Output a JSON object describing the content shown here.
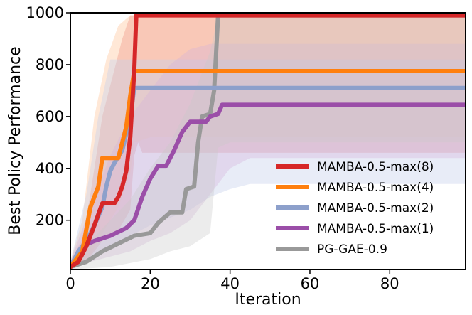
{
  "chart_data": {
    "type": "line",
    "title": "",
    "xlabel": "Iteration",
    "ylabel": "Best Policy Performance",
    "xlim": [
      0,
      99
    ],
    "ylim": [
      10,
      1000
    ],
    "xticks": [
      0,
      20,
      40,
      60,
      80
    ],
    "yticks": [
      200,
      400,
      600,
      800,
      1000
    ],
    "xtick_labels": [
      "0",
      "20",
      "40",
      "60",
      "80"
    ],
    "ytick_labels": [
      "200",
      "400",
      "600",
      "800",
      "1000"
    ],
    "legend_position": "lower-right",
    "series": [
      {
        "name": "MAMBA-0.5-max(8)",
        "color": "#d62728",
        "band_color": "#e88a8a",
        "band_opacity": 0.45,
        "points": [
          [
            0,
            20
          ],
          [
            2,
            40
          ],
          [
            4,
            100
          ],
          [
            6,
            180
          ],
          [
            8,
            265
          ],
          [
            11,
            265
          ],
          [
            12,
            290
          ],
          [
            13,
            330
          ],
          [
            14,
            390
          ],
          [
            15,
            520
          ],
          [
            16,
            780
          ],
          [
            16.5,
            990
          ],
          [
            99,
            990
          ]
        ],
        "band_upper": [
          [
            0,
            40
          ],
          [
            3,
            130
          ],
          [
            5,
            300
          ],
          [
            8,
            600
          ],
          [
            11,
            780
          ],
          [
            13,
            900
          ],
          [
            15,
            990
          ],
          [
            99,
            990
          ]
        ],
        "band_lower": [
          [
            0,
            10
          ],
          [
            4,
            40
          ],
          [
            8,
            120
          ],
          [
            12,
            160
          ],
          [
            15,
            240
          ],
          [
            16,
            450
          ],
          [
            17,
            500
          ],
          [
            18,
            460
          ],
          [
            99,
            460
          ]
        ]
      },
      {
        "name": "MAMBA-0.5-max(4)",
        "color": "#ff7f0e",
        "band_color": "#ffc59a",
        "band_opacity": 0.4,
        "points": [
          [
            0,
            20
          ],
          [
            3,
            80
          ],
          [
            5,
            250
          ],
          [
            7,
            330
          ],
          [
            8,
            440
          ],
          [
            11,
            440
          ],
          [
            12,
            440
          ],
          [
            13,
            500
          ],
          [
            14,
            560
          ],
          [
            15,
            680
          ],
          [
            16,
            775
          ],
          [
            99,
            775
          ]
        ],
        "band_upper": [
          [
            0,
            40
          ],
          [
            3,
            200
          ],
          [
            6,
            600
          ],
          [
            9,
            820
          ],
          [
            12,
            950
          ],
          [
            15,
            990
          ],
          [
            20,
            990
          ],
          [
            99,
            990
          ]
        ],
        "band_lower": [
          [
            0,
            10
          ],
          [
            4,
            40
          ],
          [
            8,
            150
          ],
          [
            12,
            250
          ],
          [
            15,
            380
          ],
          [
            16,
            500
          ],
          [
            20,
            520
          ],
          [
            99,
            520
          ]
        ]
      },
      {
        "name": "MAMBA-0.5-max(2)",
        "color": "#8da0cb",
        "band_color": "#c5d0ec",
        "band_opacity": 0.4,
        "points": [
          [
            0,
            20
          ],
          [
            2,
            80
          ],
          [
            4,
            120
          ],
          [
            6,
            180
          ],
          [
            8,
            250
          ],
          [
            9,
            330
          ],
          [
            10,
            390
          ],
          [
            11,
            420
          ],
          [
            13,
            470
          ],
          [
            15,
            600
          ],
          [
            16,
            710
          ],
          [
            99,
            710
          ]
        ],
        "band_upper": [
          [
            0,
            40
          ],
          [
            4,
            300
          ],
          [
            7,
            600
          ],
          [
            10,
            820
          ],
          [
            13,
            820
          ],
          [
            15,
            820
          ],
          [
            18,
            820
          ],
          [
            99,
            820
          ]
        ],
        "band_lower": [
          [
            0,
            10
          ],
          [
            5,
            50
          ],
          [
            10,
            100
          ],
          [
            15,
            140
          ],
          [
            20,
            180
          ],
          [
            30,
            240
          ],
          [
            35,
            290
          ],
          [
            40,
            320
          ],
          [
            45,
            340
          ],
          [
            99,
            340
          ]
        ]
      },
      {
        "name": "MAMBA-0.5-max(1)",
        "color": "#9b4ea8",
        "band_color": "#d4b3da",
        "band_opacity": 0.35,
        "points": [
          [
            0,
            20
          ],
          [
            3,
            100
          ],
          [
            6,
            120
          ],
          [
            10,
            140
          ],
          [
            14,
            170
          ],
          [
            16,
            200
          ],
          [
            18,
            290
          ],
          [
            20,
            360
          ],
          [
            22,
            410
          ],
          [
            24,
            410
          ],
          [
            26,
            470
          ],
          [
            28,
            540
          ],
          [
            30,
            580
          ],
          [
            34,
            580
          ],
          [
            35,
            600
          ],
          [
            37,
            610
          ],
          [
            38,
            645
          ],
          [
            99,
            645
          ]
        ],
        "band_upper": [
          [
            0,
            40
          ],
          [
            5,
            250
          ],
          [
            10,
            450
          ],
          [
            15,
            600
          ],
          [
            20,
            700
          ],
          [
            25,
            800
          ],
          [
            30,
            860
          ],
          [
            35,
            880
          ],
          [
            40,
            880
          ],
          [
            99,
            880
          ]
        ],
        "band_lower": [
          [
            0,
            10
          ],
          [
            5,
            40
          ],
          [
            10,
            60
          ],
          [
            15,
            80
          ],
          [
            20,
            120
          ],
          [
            25,
            150
          ],
          [
            30,
            200
          ],
          [
            35,
            300
          ],
          [
            40,
            400
          ],
          [
            45,
            440
          ],
          [
            99,
            440
          ]
        ]
      },
      {
        "name": "PG-GAE-0.9",
        "color": "#999999",
        "band_color": "#c8c8c8",
        "band_opacity": 0.35,
        "points": [
          [
            0,
            20
          ],
          [
            4,
            40
          ],
          [
            8,
            80
          ],
          [
            12,
            110
          ],
          [
            16,
            140
          ],
          [
            20,
            150
          ],
          [
            22,
            190
          ],
          [
            25,
            230
          ],
          [
            28,
            230
          ],
          [
            29,
            320
          ],
          [
            31,
            330
          ],
          [
            32,
            500
          ],
          [
            33,
            600
          ],
          [
            35,
            610
          ],
          [
            36,
            700
          ],
          [
            37,
            990
          ],
          [
            99,
            990
          ]
        ],
        "band_upper": [
          [
            0,
            40
          ],
          [
            5,
            120
          ],
          [
            10,
            200
          ],
          [
            15,
            280
          ],
          [
            20,
            400
          ],
          [
            25,
            500
          ],
          [
            30,
            650
          ],
          [
            35,
            850
          ],
          [
            37,
            990
          ],
          [
            99,
            990
          ]
        ],
        "band_lower": [
          [
            0,
            10
          ],
          [
            10,
            20
          ],
          [
            20,
            50
          ],
          [
            25,
            80
          ],
          [
            30,
            100
          ],
          [
            35,
            150
          ],
          [
            37,
            480
          ],
          [
            40,
            500
          ],
          [
            99,
            500
          ]
        ]
      }
    ]
  }
}
